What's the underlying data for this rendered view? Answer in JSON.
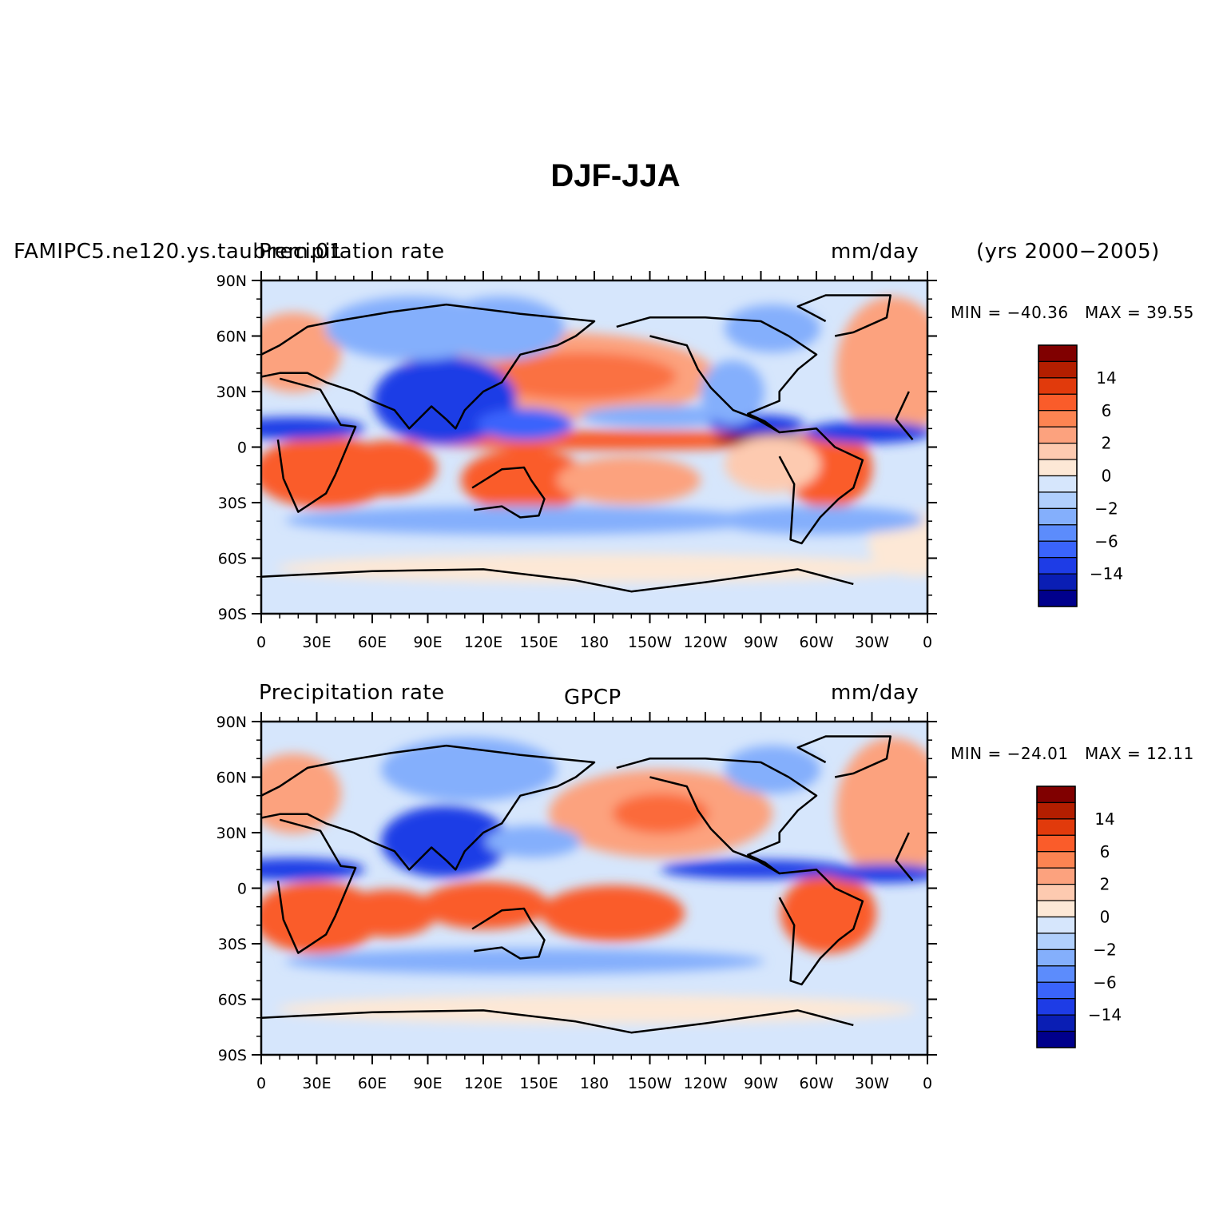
{
  "title": "DJF-JJA",
  "panels": [
    {
      "id": "model",
      "left_string": "FAMIPC5.ne120.ys.taubrem.01",
      "center_string": "Precipitation rate",
      "right_string": "mm/day",
      "extra_string": "(yrs 2000−2005)",
      "min_label": "MIN = −40.36",
      "max_label": "MAX =  39.55"
    },
    {
      "id": "obs",
      "left_string": "Precipitation rate",
      "center_string": "GPCP",
      "right_string": "mm/day",
      "min_label": "MIN = −24.01",
      "max_label": "MAX =  12.11"
    }
  ],
  "lat_ticks": [
    "90N",
    "60N",
    "30N",
    "0",
    "30S",
    "60S",
    "90S"
  ],
  "lon_ticks": [
    "0",
    "30E",
    "60E",
    "90E",
    "120E",
    "150E",
    "180",
    "150W",
    "120W",
    "90W",
    "60W",
    "30W",
    "0"
  ],
  "colorbar": {
    "labels": [
      "14",
      "6",
      "2",
      "0",
      "−2",
      "−6",
      "−14"
    ],
    "colors": [
      "#800000",
      "#b31e00",
      "#e13a0c",
      "#fa5c2a",
      "#fc8452",
      "#fca27e",
      "#fdcab0",
      "#fde8d6",
      "#d6e6fc",
      "#b0cffc",
      "#84affc",
      "#5c8cfc",
      "#3a64fc",
      "#1e3ce6",
      "#0a1eb4",
      "#00008c"
    ]
  },
  "map_colors": {
    "background": "#d6e6fc",
    "ocean_pos": "#fde8d6"
  }
}
